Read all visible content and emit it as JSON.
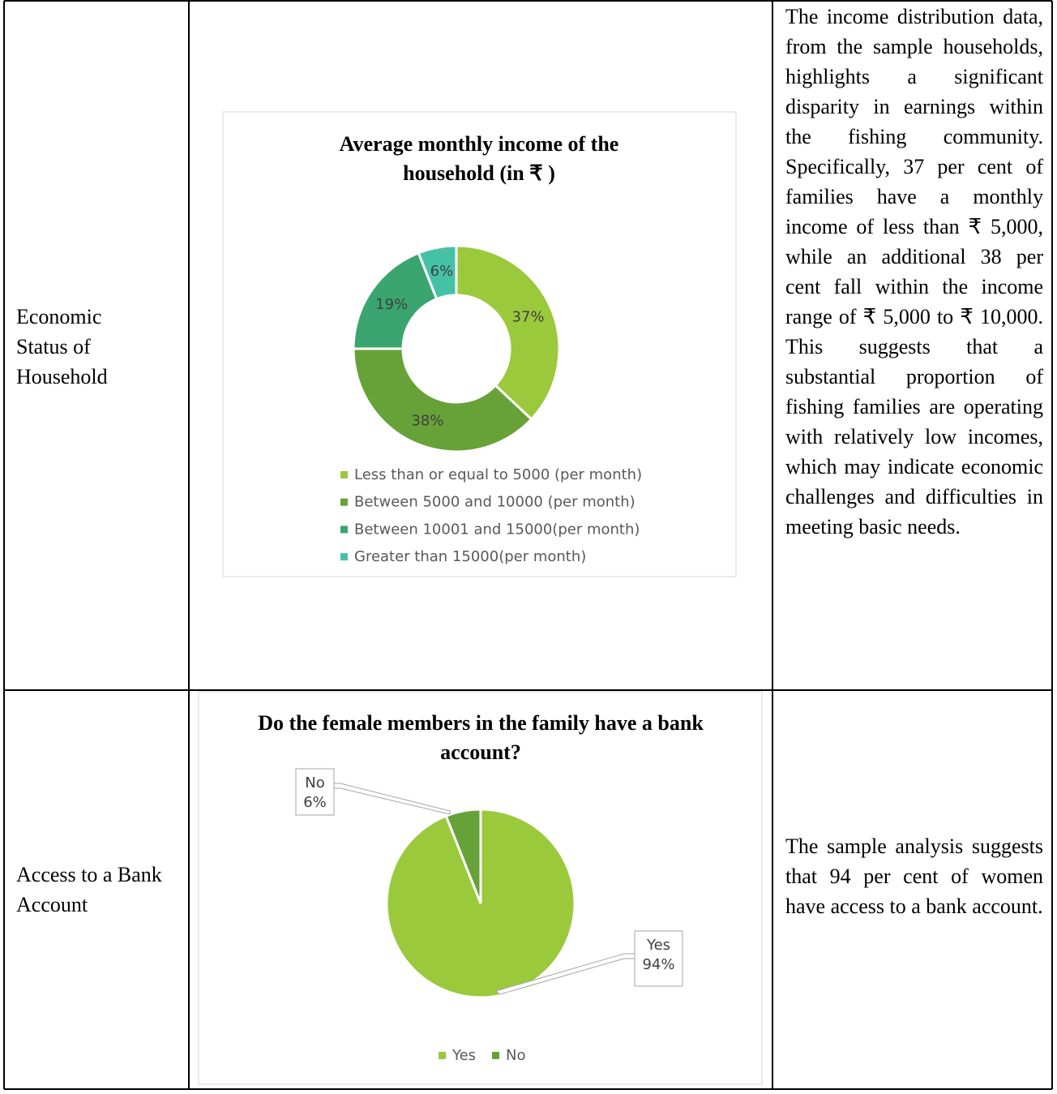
{
  "table": {
    "rows": [
      {
        "label": "Economic Status of Household",
        "text": "The income distribution data, from the sample households, highlights a significant disparity in earnings within the fishing community. Specifically, 37 per cent of families have a monthly income of less than ₹ 5,000, while an additional 38 per cent fall within the income range of ₹ 5,000 to ₹ 10,000. This suggests that a substantial proportion of fishing families are operating with relatively low incomes, which may indicate economic challenges and difficulties in meeting basic needs."
      },
      {
        "label": "Access to a Bank Account",
        "text": "The sample analysis suggests that 94 per cent of women have access to a bank account."
      }
    ]
  },
  "chart_data": [
    {
      "type": "donut",
      "title": "Average monthly income of the household (in ₹ )",
      "categories": [
        "Less than or equal to 5000 (per month)",
        "Between 5000 and 10000 (per month)",
        "Between 10001 and 15000(per month)",
        "Greater than 15000(per month)"
      ],
      "values": [
        37,
        38,
        19,
        6
      ],
      "value_labels": [
        "37%",
        "38%",
        "19%",
        "6%"
      ],
      "colors": [
        "#9bc93c",
        "#67a238",
        "#3aa56e",
        "#45c2a6"
      ],
      "legend": "bottom"
    },
    {
      "type": "pie",
      "title": "Do the female members in the family have a bank account?",
      "categories": [
        "Yes",
        "No"
      ],
      "values": [
        94,
        6
      ],
      "value_labels": [
        "94%",
        "6%"
      ],
      "colors": [
        "#9bc93c",
        "#67a238"
      ],
      "legend": "bottom"
    }
  ]
}
